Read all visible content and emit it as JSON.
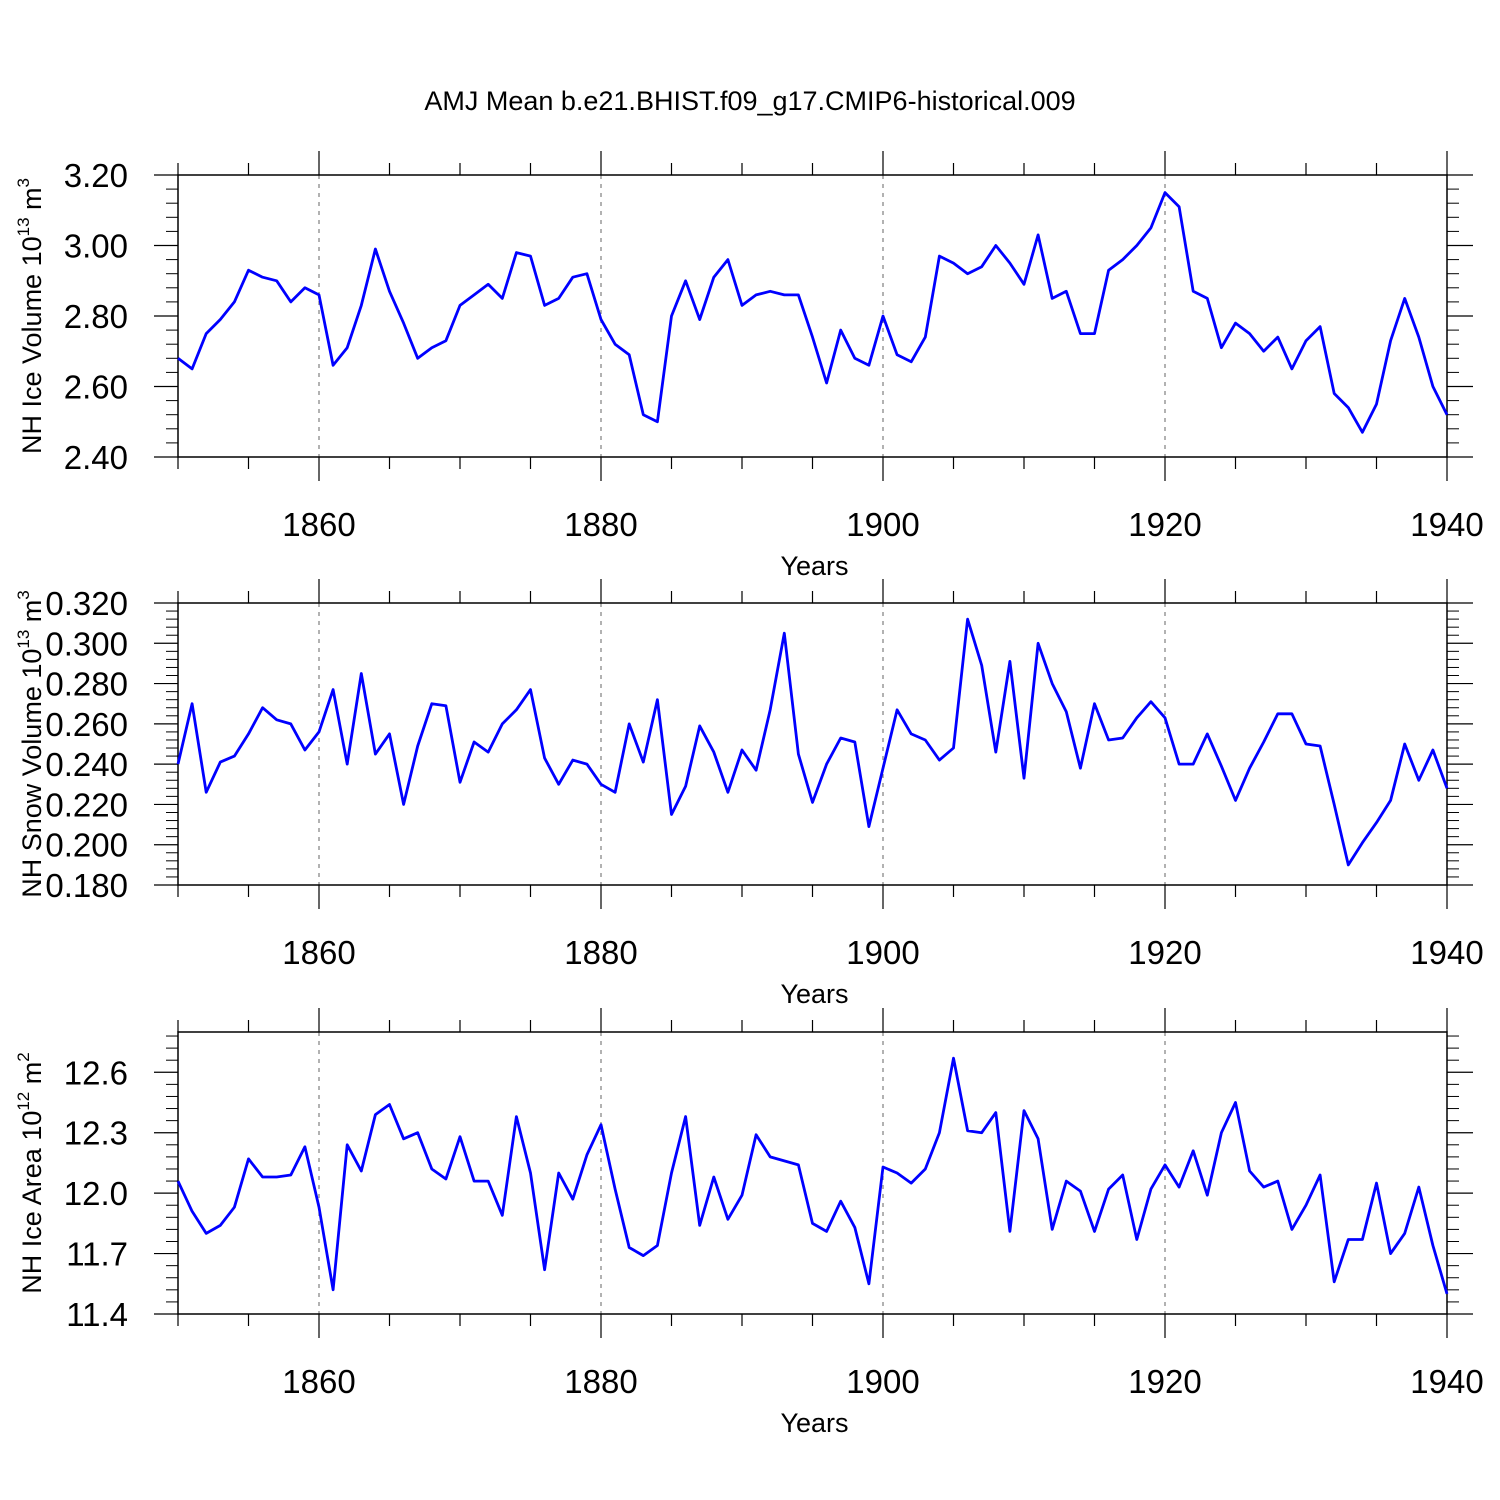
{
  "title": "AMJ Mean b.e21.BHIST.f09_g17.CMIP6-historical.009",
  "colors": {
    "line": "#0000ff",
    "axis": "#000000",
    "grid": "#7f7f7f"
  },
  "chart_data": [
    {
      "type": "line",
      "xlabel": "Years",
      "ylabel": "NH Ice Volume 10",
      "ylabel_exp": "13",
      "ylabel_unit": " m",
      "ylabel_unit_exp": "3",
      "xlim": [
        1850,
        1940
      ],
      "ylim": [
        2.4,
        3.2
      ],
      "xticks": [
        1860,
        1880,
        1900,
        1920,
        1940
      ],
      "yticks": [
        2.4,
        2.6,
        2.8,
        3.0,
        3.2
      ],
      "ytick_decimals": 2,
      "grid": "vertical dashed at major x ticks",
      "start_year": 1850,
      "values": [
        2.68,
        2.65,
        2.75,
        2.79,
        2.84,
        2.93,
        2.91,
        2.9,
        2.84,
        2.88,
        2.86,
        2.66,
        2.71,
        2.83,
        2.99,
        2.87,
        2.78,
        2.68,
        2.71,
        2.73,
        2.83,
        2.86,
        2.89,
        2.85,
        2.98,
        2.97,
        2.83,
        2.85,
        2.91,
        2.92,
        2.79,
        2.72,
        2.69,
        2.52,
        2.5,
        2.8,
        2.9,
        2.79,
        2.91,
        2.96,
        2.83,
        2.86,
        2.87,
        2.86,
        2.86,
        2.74,
        2.61,
        2.76,
        2.68,
        2.66,
        2.8,
        2.69,
        2.67,
        2.74,
        2.97,
        2.95,
        2.92,
        2.94,
        3.0,
        2.95,
        2.89,
        3.03,
        2.85,
        2.87,
        2.75,
        2.75,
        2.93,
        2.96,
        3.0,
        3.05,
        3.15,
        3.11,
        2.87,
        2.85,
        2.71,
        2.78,
        2.75,
        2.7,
        2.74,
        2.65,
        2.73,
        2.77,
        2.58,
        2.54,
        2.47,
        2.55,
        2.73,
        2.85,
        2.74,
        2.6,
        2.52
      ]
    },
    {
      "type": "line",
      "xlabel": "Years",
      "ylabel": "NH Snow Volume 10",
      "ylabel_exp": "13",
      "ylabel_unit": " m",
      "ylabel_unit_exp": "3",
      "xlim": [
        1850,
        1940
      ],
      "ylim": [
        0.18,
        0.32
      ],
      "xticks": [
        1860,
        1880,
        1900,
        1920,
        1940
      ],
      "yticks": [
        0.18,
        0.2,
        0.22,
        0.24,
        0.26,
        0.28,
        0.3,
        0.32
      ],
      "ytick_decimals": 3,
      "grid": "vertical dashed at major x ticks",
      "start_year": 1850,
      "values": [
        0.24,
        0.27,
        0.226,
        0.241,
        0.244,
        0.255,
        0.268,
        0.262,
        0.26,
        0.247,
        0.256,
        0.277,
        0.24,
        0.285,
        0.245,
        0.255,
        0.22,
        0.249,
        0.27,
        0.269,
        0.231,
        0.251,
        0.246,
        0.26,
        0.267,
        0.277,
        0.243,
        0.23,
        0.242,
        0.24,
        0.23,
        0.226,
        0.26,
        0.241,
        0.272,
        0.215,
        0.229,
        0.259,
        0.246,
        0.226,
        0.247,
        0.237,
        0.267,
        0.305,
        0.245,
        0.221,
        0.24,
        0.253,
        0.251,
        0.209,
        0.238,
        0.267,
        0.255,
        0.252,
        0.242,
        0.248,
        0.312,
        0.289,
        0.246,
        0.291,
        0.233,
        0.3,
        0.28,
        0.266,
        0.238,
        0.27,
        0.252,
        0.253,
        0.263,
        0.271,
        0.263,
        0.24,
        0.24,
        0.255,
        0.239,
        0.222,
        0.238,
        0.251,
        0.265,
        0.265,
        0.25,
        0.249,
        0.22,
        0.19,
        0.201,
        0.211,
        0.222,
        0.25,
        0.232,
        0.247,
        0.228
      ]
    },
    {
      "type": "line",
      "xlabel": "Years",
      "ylabel": "NH Ice Area 10",
      "ylabel_exp": "12",
      "ylabel_unit": " m",
      "ylabel_unit_exp": "2",
      "xlim": [
        1850,
        1940
      ],
      "ylim": [
        11.4,
        12.8
      ],
      "xticks": [
        1860,
        1880,
        1900,
        1920,
        1940
      ],
      "yticks": [
        11.4,
        11.7,
        12.0,
        12.3,
        12.6
      ],
      "ytick_decimals": 1,
      "grid": "vertical dashed at major x ticks",
      "start_year": 1850,
      "values": [
        12.06,
        11.91,
        11.8,
        11.84,
        11.93,
        12.17,
        12.08,
        12.08,
        12.09,
        12.23,
        11.93,
        11.52,
        12.24,
        12.11,
        12.39,
        12.44,
        12.27,
        12.3,
        12.12,
        12.07,
        12.28,
        12.06,
        12.06,
        11.89,
        12.38,
        12.1,
        11.62,
        12.1,
        11.97,
        12.19,
        12.34,
        12.02,
        11.73,
        11.69,
        11.74,
        12.1,
        12.38,
        11.84,
        12.08,
        11.87,
        11.99,
        12.29,
        12.18,
        12.16,
        12.14,
        11.85,
        11.81,
        11.96,
        11.83,
        11.55,
        12.13,
        12.1,
        12.05,
        12.12,
        12.3,
        12.67,
        12.31,
        12.3,
        12.4,
        11.81,
        12.41,
        12.27,
        11.82,
        12.06,
        12.01,
        11.81,
        12.02,
        12.09,
        11.77,
        12.02,
        12.14,
        12.03,
        12.21,
        11.99,
        12.3,
        12.45,
        12.11,
        12.03,
        12.06,
        11.82,
        11.94,
        12.09,
        11.56,
        11.77,
        11.77,
        12.05,
        11.7,
        11.8,
        12.03,
        11.74,
        11.5
      ]
    }
  ]
}
